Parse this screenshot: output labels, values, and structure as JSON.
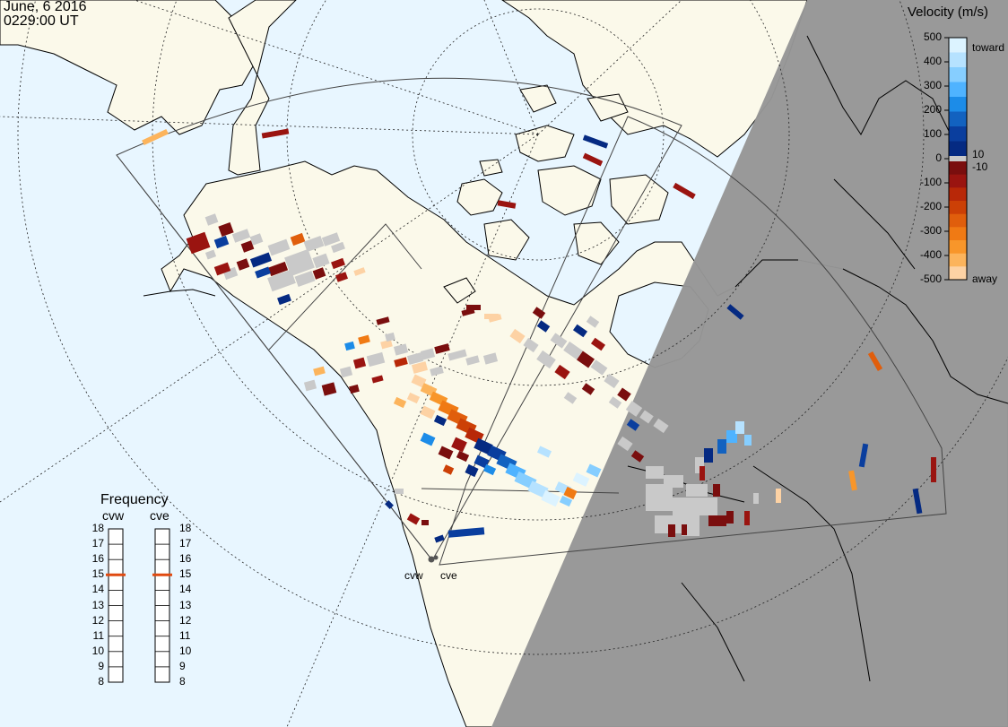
{
  "header": {
    "date": "June, 6 2016",
    "time": "0229:00 UT"
  },
  "velocity_legend": {
    "title": "Velocity (m/s)",
    "ticks": [
      "500",
      "400",
      "300",
      "200",
      "100",
      "0",
      "-100",
      "-200",
      "-300",
      "-400",
      "-500"
    ],
    "small_pos": "10",
    "small_neg": "-10",
    "toward_label": "toward",
    "away_label": "away",
    "colors": {
      "toward": [
        "#dcf3ff",
        "#b6e2ff",
        "#86ceff",
        "#4fb3ff",
        "#1c8ce8",
        "#1262c0",
        "#0a3e9e",
        "#052a82"
      ],
      "away": [
        "#7a0e0e",
        "#9a1410",
        "#b82808",
        "#cc4006",
        "#e05e0c",
        "#f07a14",
        "#f8962a",
        "#fcb45c",
        "#fdd2a4"
      ],
      "ground_scatter": "#c9c9c9"
    }
  },
  "frequency": {
    "title": "Frequency",
    "radar_labels": [
      "cvw",
      "cve"
    ],
    "scale": [
      "18",
      "17",
      "16",
      "15",
      "14",
      "13",
      "12",
      "11",
      "10",
      "9",
      "8"
    ],
    "cvw_mhz": 15,
    "cve_mhz": 15,
    "marker_color": "#e04a10"
  },
  "sites": {
    "cvw": "cvw",
    "cve": "cve"
  },
  "map_colors": {
    "ocean": "#e8f6ff",
    "land": "#fbf9ea",
    "night": "#969696"
  }
}
